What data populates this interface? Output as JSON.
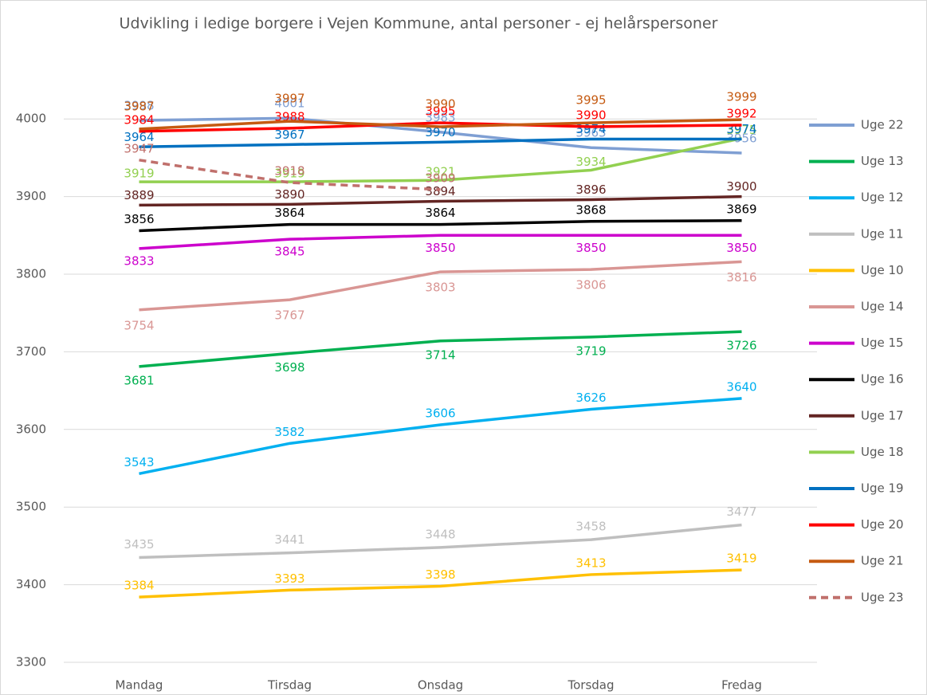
{
  "chart_data": {
    "type": "line",
    "title": "Udvikling i ledige borgere i Vejen Kommune, antal personer - ej helårspersoner",
    "categories": [
      "Mandag",
      "Tirsdag",
      "Onsdag",
      "Torsdag",
      "Fredag"
    ],
    "ylim": [
      3300,
      4100
    ],
    "yticks": [
      3300,
      3400,
      3500,
      3600,
      3700,
      3800,
      3900,
      4000
    ],
    "grid": true,
    "legend": "right",
    "series": [
      {
        "name": "Uge 22",
        "color": "#7f9fd3",
        "values": [
          3998,
          4001,
          3983,
          3963,
          3956
        ]
      },
      {
        "name": "Uge 13",
        "color": "#00b050",
        "values": [
          3681,
          3698,
          3714,
          3719,
          3726
        ]
      },
      {
        "name": "Uge 12",
        "color": "#00b0f0",
        "values": [
          3543,
          3582,
          3606,
          3626,
          3640
        ]
      },
      {
        "name": "Uge 11",
        "color": "#bfbfbf",
        "values": [
          3435,
          3441,
          3448,
          3458,
          3477
        ]
      },
      {
        "name": "Uge 10",
        "color": "#ffc000",
        "values": [
          3384,
          3393,
          3398,
          3413,
          3419
        ]
      },
      {
        "name": "Uge 14",
        "color": "#d99694",
        "values": [
          3754,
          3767,
          3803,
          3806,
          3816
        ]
      },
      {
        "name": "Uge 15",
        "color": "#cc00cc",
        "values": [
          3833,
          3845,
          3850,
          3850,
          3850
        ]
      },
      {
        "name": "Uge 16",
        "color": "#000000",
        "values": [
          3856,
          3864,
          3864,
          3868,
          3869
        ]
      },
      {
        "name": "Uge 17",
        "color": "#632523",
        "values": [
          3889,
          3890,
          3894,
          3896,
          3900
        ]
      },
      {
        "name": "Uge 18",
        "color": "#92d050",
        "values": [
          3919,
          3919,
          3921,
          3934,
          3975
        ]
      },
      {
        "name": "Uge 19",
        "color": "#0070c0",
        "values": [
          3964,
          3967,
          3970,
          3974,
          3974
        ]
      },
      {
        "name": "Uge 20",
        "color": "#ff0000",
        "values": [
          3984,
          3988,
          3995,
          3990,
          3992
        ]
      },
      {
        "name": "Uge 21",
        "color": "#c55a11",
        "values": [
          3987,
          3997,
          3990,
          3995,
          3999
        ]
      },
      {
        "name": "Uge 23",
        "color": "#c0706c",
        "dashed": true,
        "values": [
          3947,
          3918,
          3909,
          null,
          null
        ]
      }
    ]
  }
}
